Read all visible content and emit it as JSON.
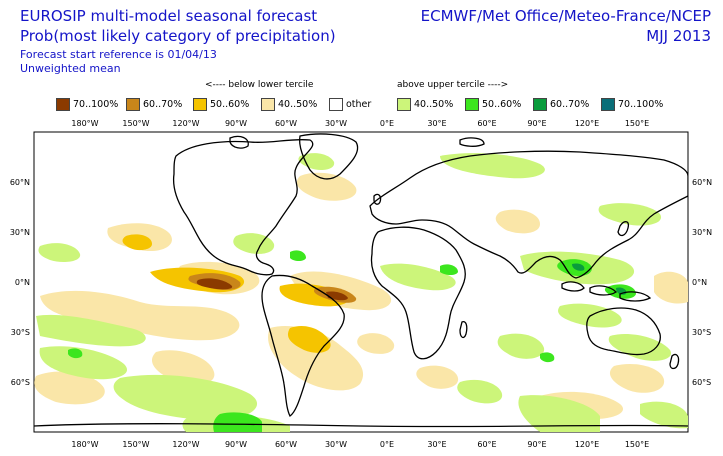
{
  "title_left_1": "EUROSIP multi-model seasonal forecast",
  "title_left_2": "Prob(most likely category of precipitation)",
  "subtitle_1": "Forecast start reference is 01/04/13",
  "subtitle_2": "Unweighted mean",
  "title_right_1": "ECMWF/Met Office/Meteo-France/NCEP",
  "title_right_2": "MJJ 2013",
  "hint_below": "<---- below lower tercile",
  "hint_above": "above upper tercile ---->",
  "legend": [
    {
      "label": "70..100%",
      "color": "#8b3a00"
    },
    {
      "label": "60..70%",
      "color": "#c9861a"
    },
    {
      "label": "50..60%",
      "color": "#f5c400"
    },
    {
      "label": "40..50%",
      "color": "#fae6a8"
    },
    {
      "label": "other",
      "color": "#ffffff"
    },
    {
      "label": "40..50%",
      "color": "#ccf57a"
    },
    {
      "label": "50..60%",
      "color": "#3ce61e"
    },
    {
      "label": "60..70%",
      "color": "#0a9c3c"
    },
    {
      "label": "70..100%",
      "color": "#0a6e78"
    }
  ],
  "lon_labels": [
    "180°W",
    "150°W",
    "120°W",
    "90°W",
    "60°W",
    "30°W",
    "0°E",
    "30°E",
    "60°E",
    "90°E",
    "120°E",
    "150°E"
  ],
  "lat_labels": [
    "60°N",
    "30°N",
    "0°N",
    "30°S",
    "60°S"
  ]
}
